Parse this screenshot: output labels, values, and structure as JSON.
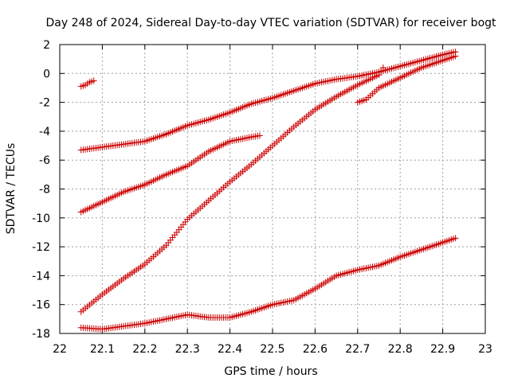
{
  "chart_data": {
    "type": "scatter",
    "title": "Day 248 of 2024, Sidereal Day-to-day VTEC variation (SDTVAR) for receiver bogt",
    "xlabel": "GPS time / hours",
    "ylabel": "SDTVAR / TECUs",
    "xlim": [
      22,
      23
    ],
    "ylim": [
      -18,
      2
    ],
    "x_ticks": [
      22,
      22.1,
      22.2,
      22.3,
      22.4,
      22.5,
      22.6,
      22.7,
      22.8,
      22.9,
      23
    ],
    "x_tick_labels": [
      "22",
      "22.1",
      "22.2",
      "22.3",
      "22.4",
      "22.5",
      "22.6",
      "22.7",
      "22.8",
      "22.9",
      "23"
    ],
    "y_ticks": [
      -18,
      -16,
      -14,
      -12,
      -10,
      -8,
      -6,
      -4,
      -2,
      0,
      2
    ],
    "y_tick_labels": [
      "-18",
      "-16",
      "-14",
      "-12",
      "-10",
      "-8",
      "-6",
      "-4",
      "-2",
      "0",
      "2"
    ],
    "grid": true,
    "marker": "plus",
    "color": "#cc0000",
    "series": [
      {
        "name": "satellite-1",
        "x": [
          22.05,
          22.06,
          22.07,
          22.08
        ],
        "y": [
          -0.9,
          -0.8,
          -0.6,
          -0.5
        ]
      },
      {
        "name": "satellite-2",
        "x": [
          22.05,
          22.1,
          22.15,
          22.2,
          22.25,
          22.3,
          22.35,
          22.4,
          22.45,
          22.5,
          22.55,
          22.6,
          22.65,
          22.7,
          22.75,
          22.8,
          22.85,
          22.9,
          22.93
        ],
        "y": [
          -5.3,
          -5.1,
          -4.9,
          -4.7,
          -4.2,
          -3.6,
          -3.2,
          -2.7,
          -2.1,
          -1.7,
          -1.2,
          -0.7,
          -0.4,
          -0.2,
          0.1,
          0.5,
          0.9,
          1.3,
          1.5
        ]
      },
      {
        "name": "satellite-3",
        "x": [
          22.05,
          22.1,
          22.15,
          22.2,
          22.25,
          22.3,
          22.35,
          22.4,
          22.45,
          22.47
        ],
        "y": [
          -9.6,
          -8.9,
          -8.2,
          -7.7,
          -7.0,
          -6.4,
          -5.4,
          -4.7,
          -4.4,
          -4.3
        ]
      },
      {
        "name": "satellite-4",
        "x": [
          22.05,
          22.1,
          22.15,
          22.2,
          22.25,
          22.3,
          22.35,
          22.4,
          22.45,
          22.5,
          22.55,
          22.6,
          22.65,
          22.7,
          22.75,
          22.76
        ],
        "y": [
          -16.5,
          -15.3,
          -14.2,
          -13.2,
          -11.9,
          -10.1,
          -8.8,
          -7.5,
          -6.3,
          -5.0,
          -3.7,
          -2.5,
          -1.6,
          -0.8,
          -0.1,
          0.4
        ]
      },
      {
        "name": "satellite-5",
        "x": [
          22.7,
          22.72,
          22.75,
          22.8,
          22.85,
          22.9,
          22.93
        ],
        "y": [
          -2.0,
          -1.8,
          -1.0,
          -0.3,
          0.4,
          0.9,
          1.2
        ]
      },
      {
        "name": "satellite-6",
        "x": [
          22.05,
          22.1,
          22.15,
          22.2,
          22.25,
          22.3,
          22.35,
          22.4,
          22.45,
          22.5,
          22.55,
          22.6,
          22.65,
          22.7,
          22.75,
          22.8,
          22.85,
          22.9,
          22.93
        ],
        "y": [
          -17.6,
          -17.7,
          -17.5,
          -17.3,
          -17.0,
          -16.7,
          -16.9,
          -16.9,
          -16.5,
          -16.0,
          -15.7,
          -14.9,
          -14.0,
          -13.6,
          -13.3,
          -12.7,
          -12.2,
          -11.7,
          -11.4
        ]
      }
    ]
  }
}
